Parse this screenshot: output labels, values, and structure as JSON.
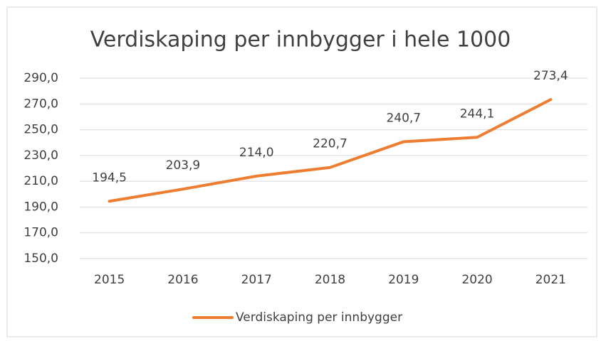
{
  "chart_data": {
    "type": "line",
    "title": "Verdiskaping per innbygger i hele 1000",
    "categories": [
      "2015",
      "2016",
      "2017",
      "2018",
      "2019",
      "2020",
      "2021"
    ],
    "series": [
      {
        "name": "Verdiskaping per innbygger",
        "color": "#ed7d31",
        "values": [
          194.5,
          203.9,
          214.0,
          220.7,
          240.7,
          244.1,
          273.4
        ],
        "value_labels": [
          "194,5",
          "203,9",
          "214,0",
          "220,7",
          "240,7",
          "244,1",
          "273,4"
        ]
      }
    ],
    "ylim": [
      150,
      290
    ],
    "yticks": [
      {
        "value": 150,
        "label": "150,0"
      },
      {
        "value": 170,
        "label": "170,0"
      },
      {
        "value": 190,
        "label": "190,0"
      },
      {
        "value": 210,
        "label": "210,0"
      },
      {
        "value": 230,
        "label": "230,0"
      },
      {
        "value": 250,
        "label": "250,0"
      },
      {
        "value": 270,
        "label": "270,0"
      },
      {
        "value": 290,
        "label": "290,0"
      }
    ],
    "grid": true,
    "legend": "bottom"
  }
}
